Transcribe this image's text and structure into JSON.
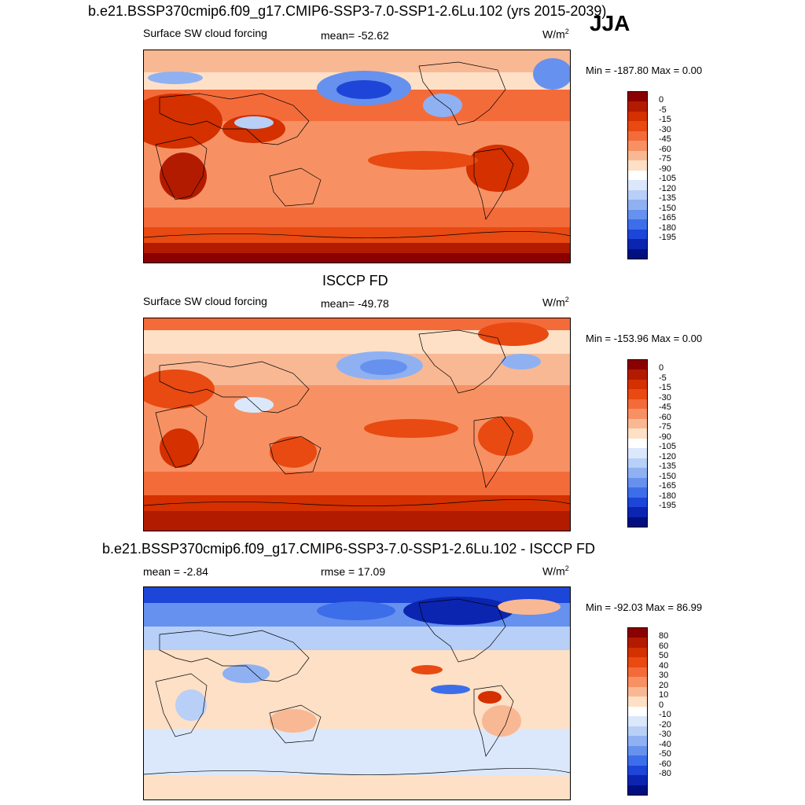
{
  "season_label": "JJA",
  "panels": [
    {
      "title": "b.e21.BSSP370cmip6.f09_g17.CMIP6-SSP3-7.0-SSP1-2.6Lu.102 (yrs 2015-2039)",
      "variable": "Surface SW cloud forcing",
      "stat1": "mean= -52.62",
      "stat2": "",
      "units": "W/m",
      "units_sup": "2",
      "minmax": "Min = -187.80 Max =   0.00"
    },
    {
      "title": "ISCCP FD",
      "variable": "Surface SW cloud forcing",
      "stat1": "mean= -49.78",
      "stat2": "",
      "units": "W/m",
      "units_sup": "2",
      "minmax": "Min = -153.96 Max =   0.00"
    },
    {
      "title": "b.e21.BSSP370cmip6.f09_g17.CMIP6-SSP3-7.0-SSP1-2.6Lu.102 - ISCCP FD",
      "variable": "",
      "stat1": "mean =  -2.84",
      "stat2": "rmse =  17.09",
      "units": "W/m",
      "units_sup": "2",
      "minmax": "Min = -92.03 Max =  86.99"
    }
  ],
  "colorbars": {
    "abs": {
      "labels": [
        "0",
        "-5",
        "-15",
        "-30",
        "-45",
        "-60",
        "-75",
        "-90",
        "-105",
        "-120",
        "-135",
        "-150",
        "-165",
        "-180",
        "-195"
      ],
      "colors": [
        "#8b0000",
        "#b31b00",
        "#d43000",
        "#e84a12",
        "#f46b3a",
        "#f79163",
        "#f9b894",
        "#fde0c6",
        "#ffffff",
        "#dbe8fb",
        "#b8cff7",
        "#8fb1f2",
        "#6691ee",
        "#3d6ee9",
        "#1d45d8",
        "#0b25b0",
        "#001080"
      ]
    },
    "diff": {
      "labels": [
        "80",
        "60",
        "50",
        "40",
        "30",
        "20",
        "10",
        "0",
        "-10",
        "-20",
        "-30",
        "-40",
        "-50",
        "-60",
        "-80"
      ],
      "colors": [
        "#8b0000",
        "#b31b00",
        "#d43000",
        "#e84a12",
        "#f46b3a",
        "#f79163",
        "#f9b894",
        "#fde0c6",
        "#ffffff",
        "#dbe8fb",
        "#b8cff7",
        "#8fb1f2",
        "#6691ee",
        "#3d6ee9",
        "#1d45d8",
        "#0b25b0",
        "#001080"
      ]
    }
  }
}
